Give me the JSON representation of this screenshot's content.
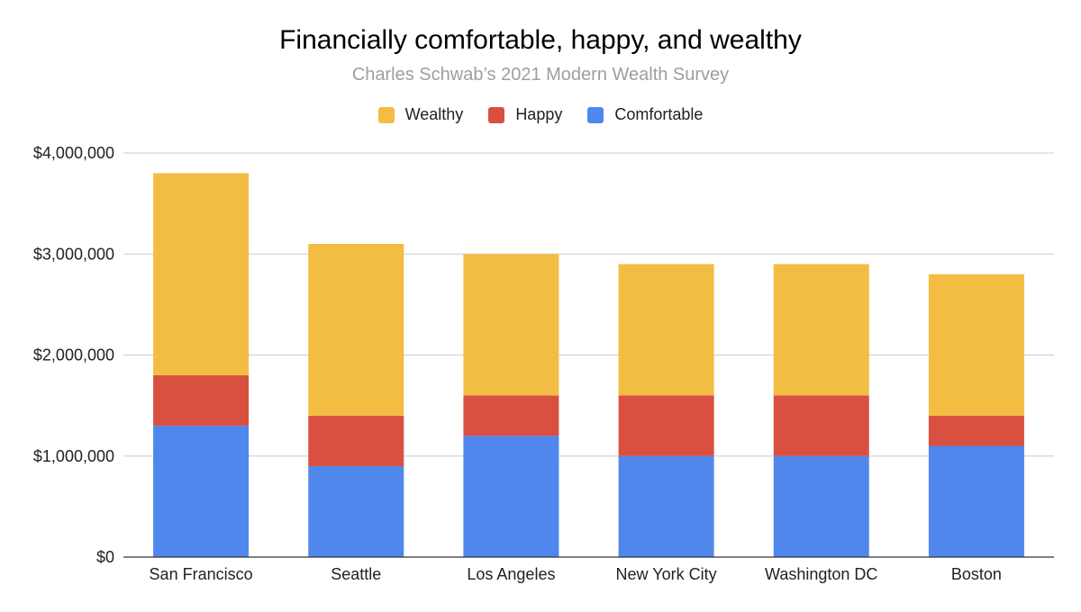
{
  "chart_data": {
    "type": "bar",
    "stacked": true,
    "title": "Financially comfortable, happy, and wealthy",
    "subtitle": "Charles Schwab’s 2021 Modern Wealth Survey",
    "xlabel": "",
    "ylabel": "",
    "ylim": [
      0,
      4000000
    ],
    "yticks": [
      0,
      1000000,
      2000000,
      3000000,
      4000000
    ],
    "ytick_labels": [
      "$0",
      "$1,000,000",
      "$2,000,000",
      "$3,000,000",
      "$4,000,000"
    ],
    "categories": [
      "San Francisco",
      "Seattle",
      "Los Angeles",
      "New York City",
      "Washington DC",
      "Boston"
    ],
    "series": [
      {
        "name": "Comfortable",
        "color": "#5087ec",
        "values": [
          1300000,
          900000,
          1200000,
          1000000,
          1000000,
          1100000
        ]
      },
      {
        "name": "Happy",
        "color": "#d95040",
        "values": [
          500000,
          500000,
          400000,
          600000,
          600000,
          300000
        ]
      },
      {
        "name": "Wealthy",
        "color": "#f2bd42",
        "values": [
          2000000,
          1700000,
          1400000,
          1300000,
          1300000,
          1400000
        ]
      }
    ],
    "legend": {
      "position": "top-center",
      "order": [
        "Wealthy",
        "Happy",
        "Comfortable"
      ]
    },
    "grid": true
  }
}
